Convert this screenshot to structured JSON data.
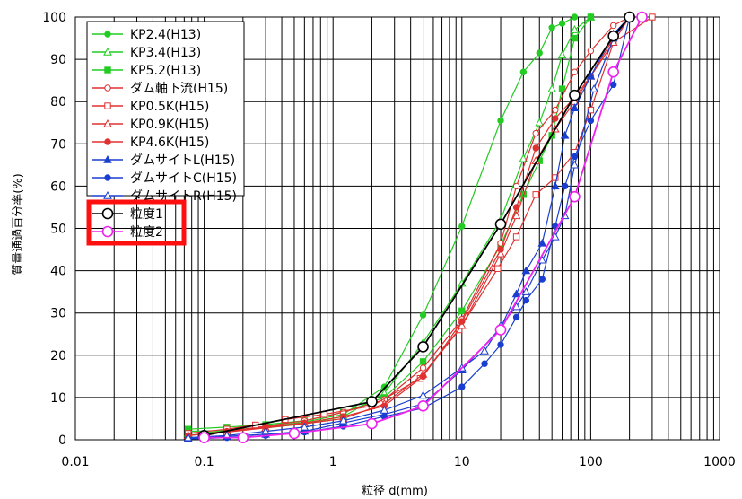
{
  "chart_data": {
    "type": "line",
    "title": "",
    "xlabel": "粒径 d(mm)",
    "ylabel": "質量通過百分率(%)",
    "xscale": "log",
    "xlim": [
      0.01,
      1000
    ],
    "ylim": [
      0,
      100
    ],
    "x_ticks": [
      "0.01",
      "0.1",
      "1",
      "10",
      "100",
      "1000"
    ],
    "y_ticks": [
      "0",
      "10",
      "20",
      "30",
      "40",
      "50",
      "60",
      "70",
      "80",
      "90",
      "100"
    ],
    "grid": true,
    "legend_position": "top-left",
    "series": [
      {
        "name": "KP2.4(H13)",
        "color": "#22cc22",
        "marker": "circle-filled",
        "x": [
          0.075,
          0.15,
          0.3,
          0.6,
          1.2,
          2.5,
          5,
          10,
          20,
          30,
          40,
          50,
          60,
          75
        ],
        "y": [
          2.0,
          2.2,
          3.0,
          4.2,
          6.0,
          12.5,
          29.5,
          50.5,
          75.5,
          87.0,
          91.5,
          97.5,
          98.5,
          100
        ]
      },
      {
        "name": "KP3.4(H13)",
        "color": "#22cc22",
        "marker": "triangle-open",
        "x": [
          0.075,
          0.15,
          0.3,
          0.6,
          1.2,
          2.5,
          5,
          10,
          20,
          30,
          40,
          50,
          60,
          75,
          100
        ],
        "y": [
          1.5,
          2.0,
          2.8,
          3.8,
          5.5,
          11.0,
          23.0,
          37.0,
          52.0,
          66.5,
          75.0,
          83.0,
          91.0,
          97.0,
          100
        ]
      },
      {
        "name": "KP5.2(H13)",
        "color": "#22cc22",
        "marker": "square-filled",
        "x": [
          0.075,
          0.15,
          0.3,
          0.6,
          1.2,
          2.5,
          5,
          10,
          20,
          30,
          40,
          50,
          60,
          75,
          100
        ],
        "y": [
          2.5,
          3.0,
          3.6,
          4.5,
          6.5,
          10.0,
          18.5,
          30.5,
          46.0,
          58.0,
          66.0,
          72.0,
          83.0,
          95.0,
          100
        ]
      },
      {
        "name": "ダム軸下流(H15)",
        "color": "#e03030",
        "marker": "circle-open",
        "x": [
          0.075,
          0.15,
          0.3,
          0.6,
          1.2,
          2.5,
          5,
          10,
          20,
          26.5,
          37.5,
          53,
          75,
          100,
          150,
          200
        ],
        "y": [
          1.0,
          2.0,
          3.2,
          4.5,
          6.5,
          9.5,
          17.0,
          28.5,
          46.5,
          60.0,
          72.5,
          78.0,
          87.0,
          92.0,
          98.0,
          100
        ]
      },
      {
        "name": "KP0.5K(H15)",
        "color": "#e03030",
        "marker": "square-open",
        "x": [
          0.075,
          0.15,
          0.25,
          0.425,
          0.85,
          2.0,
          4.75,
          9.5,
          19,
          26.5,
          37.5,
          53,
          75,
          100,
          150,
          300
        ],
        "y": [
          1.5,
          2.5,
          3.5,
          4.8,
          6.0,
          8.0,
          14.5,
          26.0,
          40.5,
          48.0,
          58.0,
          62.0,
          68.0,
          78.0,
          94.0,
          100
        ]
      },
      {
        "name": "KP0.9K(H15)",
        "color": "#e03030",
        "marker": "triangle-open",
        "x": [
          0.075,
          0.15,
          0.3,
          0.6,
          1.2,
          2.5,
          5,
          10,
          20,
          26.5,
          37.5,
          53,
          75,
          100,
          150,
          200
        ],
        "y": [
          1.0,
          1.8,
          2.8,
          3.8,
          5.0,
          8.5,
          15.5,
          27.0,
          44.0,
          53.0,
          66.0,
          73.5,
          80.0,
          86.0,
          94.0,
          100
        ]
      },
      {
        "name": "KP4.6K(H15)",
        "color": "#e03030",
        "marker": "circle-filled",
        "x": [
          0.075,
          0.15,
          0.3,
          0.6,
          1.2,
          2.5,
          5,
          10,
          20,
          26.5,
          37.5,
          53,
          75,
          100,
          150,
          200
        ],
        "y": [
          1.0,
          2.0,
          3.0,
          4.0,
          5.5,
          8.0,
          15.0,
          28.0,
          45.0,
          55.0,
          69.0,
          76.0,
          81.0,
          86.0,
          95.0,
          100
        ]
      },
      {
        "name": "ダムサイトL(H15)",
        "color": "#1a3fd0",
        "marker": "triangle-filled",
        "x": [
          0.075,
          0.15,
          0.3,
          0.6,
          1.2,
          2.5,
          5,
          10,
          20,
          26.5,
          31.5,
          42,
          53,
          63,
          75,
          100,
          150,
          200
        ],
        "y": [
          0.3,
          0.8,
          1.3,
          2.0,
          4.0,
          6.0,
          8.5,
          16.5,
          26.5,
          34.5,
          40.0,
          46.5,
          60.0,
          72.0,
          78.5,
          86.0,
          96.0,
          100
        ]
      },
      {
        "name": "ダムサイトC(H15)",
        "color": "#1a3fd0",
        "marker": "circle-filled",
        "x": [
          0.075,
          0.15,
          0.3,
          0.6,
          1.2,
          2.5,
          5,
          10,
          15,
          20,
          26.5,
          31.5,
          42,
          53,
          63,
          75,
          100,
          150,
          200
        ],
        "y": [
          0.2,
          0.5,
          1.0,
          1.8,
          3.2,
          5.5,
          7.5,
          12.5,
          18.0,
          22.5,
          29.0,
          33.0,
          38.0,
          50.5,
          60.0,
          67.0,
          75.5,
          84.0,
          100
        ]
      },
      {
        "name": "ダムサイトR(H15)",
        "color": "#1a3fd0",
        "marker": "triangle-open",
        "x": [
          0.075,
          0.15,
          0.3,
          0.6,
          1.2,
          2.5,
          5,
          10,
          15,
          20,
          26.5,
          31.5,
          42,
          53,
          63,
          75,
          106,
          150,
          200
        ],
        "y": [
          0.5,
          1.0,
          2.0,
          3.0,
          4.5,
          7.0,
          10.5,
          17.0,
          21.0,
          27.0,
          31.5,
          35.0,
          42.5,
          48.0,
          53.0,
          65.0,
          83.0,
          95.0,
          100
        ]
      },
      {
        "name": "粒度1",
        "color": "#000000",
        "marker": "circle-open-large",
        "x": [
          0.1,
          2,
          5,
          20,
          75,
          150,
          200
        ],
        "y": [
          1.0,
          9.0,
          22.0,
          51.0,
          81.5,
          95.5,
          100
        ]
      },
      {
        "name": "粒度2",
        "color": "#ee22ee",
        "marker": "circle-open-large",
        "x": [
          0.1,
          0.2,
          0.5,
          2,
          5,
          20,
          75,
          150,
          250
        ],
        "y": [
          0.5,
          0.5,
          1.5,
          3.8,
          8.0,
          26.0,
          57.5,
          87.0,
          100
        ]
      }
    ]
  }
}
